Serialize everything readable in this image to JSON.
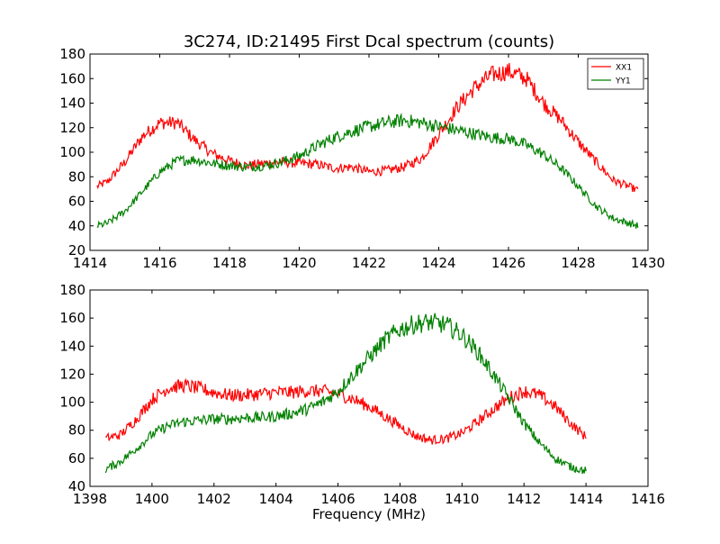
{
  "figure": {
    "title": "3C274, ID:21495 First Dcal spectrum (counts)",
    "xlabel": "Frequency (MHz)"
  },
  "colors": {
    "xx1": "#ff0000",
    "yy1": "#008000",
    "axes": "#000000",
    "background": "#ffffff"
  },
  "chart_data": [
    {
      "type": "line",
      "title": "3C274, ID:21495 First Dcal spectrum (counts)",
      "xlabel": "",
      "ylabel": "",
      "xlim": [
        1414,
        1430
      ],
      "ylim": [
        20,
        180
      ],
      "xticks": [
        1414,
        1416,
        1418,
        1420,
        1422,
        1424,
        1426,
        1428,
        1430
      ],
      "yticks": [
        20,
        40,
        60,
        80,
        100,
        120,
        140,
        160,
        180
      ],
      "legend": {
        "placement": "top-right",
        "entries": [
          "XX1",
          "YY1"
        ]
      },
      "noisy": true,
      "series": [
        {
          "name": "XX1",
          "color": "#ff0000",
          "x": [
            1414.2,
            1414.5,
            1415.0,
            1415.5,
            1416.0,
            1416.5,
            1417.0,
            1417.5,
            1418.0,
            1418.5,
            1419.0,
            1419.5,
            1420.0,
            1420.5,
            1421.0,
            1421.5,
            1422.0,
            1422.5,
            1423.0,
            1423.5,
            1424.0,
            1424.5,
            1425.0,
            1425.5,
            1426.0,
            1426.5,
            1427.0,
            1427.5,
            1428.0,
            1428.5,
            1429.0,
            1429.7
          ],
          "y": [
            72,
            76,
            92,
            113,
            124,
            124,
            110,
            99,
            93,
            89,
            91,
            92,
            91,
            90,
            87,
            88,
            84,
            85,
            88,
            95,
            115,
            136,
            152,
            163,
            166,
            160,
            140,
            126,
            108,
            92,
            77,
            69
          ]
        },
        {
          "name": "YY1",
          "color": "#008000",
          "x": [
            1414.2,
            1414.5,
            1415.0,
            1415.5,
            1416.0,
            1416.5,
            1417.0,
            1417.5,
            1418.0,
            1418.5,
            1419.0,
            1419.5,
            1420.0,
            1420.5,
            1421.0,
            1421.5,
            1422.0,
            1422.5,
            1423.0,
            1423.5,
            1424.0,
            1424.5,
            1425.0,
            1425.5,
            1426.0,
            1426.5,
            1427.0,
            1427.5,
            1428.0,
            1428.5,
            1429.0,
            1429.7
          ],
          "y": [
            40,
            42,
            52,
            68,
            84,
            93,
            94,
            91,
            89,
            88,
            89,
            92,
            97,
            105,
            112,
            117,
            121,
            124,
            126,
            124,
            121,
            118,
            115,
            112,
            111,
            106,
            98,
            87,
            72,
            56,
            46,
            40
          ]
        }
      ]
    },
    {
      "type": "line",
      "title": "",
      "xlabel": "Frequency (MHz)",
      "ylabel": "",
      "xlim": [
        1398,
        1416
      ],
      "ylim": [
        40,
        180
      ],
      "xticks": [
        1398,
        1400,
        1402,
        1404,
        1406,
        1408,
        1410,
        1412,
        1414,
        1416
      ],
      "yticks": [
        40,
        60,
        80,
        100,
        120,
        140,
        160,
        180
      ],
      "noisy": true,
      "series": [
        {
          "name": "XX1",
          "color": "#ff0000",
          "x": [
            1398.5,
            1399.0,
            1399.5,
            1400.0,
            1400.5,
            1401.0,
            1401.5,
            1402.0,
            1402.5,
            1403.0,
            1403.5,
            1404.0,
            1404.5,
            1405.0,
            1405.5,
            1406.0,
            1406.5,
            1407.0,
            1407.5,
            1408.0,
            1408.5,
            1409.0,
            1409.5,
            1410.0,
            1410.5,
            1411.0,
            1411.5,
            1412.0,
            1412.5,
            1413.0,
            1413.5,
            1414.0
          ],
          "y": [
            74,
            77,
            88,
            102,
            110,
            112,
            110,
            107,
            105,
            105,
            106,
            107,
            107,
            108,
            108,
            106,
            102,
            97,
            90,
            83,
            76,
            73,
            74,
            78,
            86,
            95,
            103,
            108,
            105,
            97,
            85,
            75
          ]
        },
        {
          "name": "YY1",
          "color": "#008000",
          "x": [
            1398.5,
            1399.0,
            1399.5,
            1400.0,
            1400.5,
            1401.0,
            1401.5,
            1402.0,
            1402.5,
            1403.0,
            1403.5,
            1404.0,
            1404.5,
            1405.0,
            1405.5,
            1406.0,
            1406.5,
            1407.0,
            1407.5,
            1408.0,
            1408.5,
            1409.0,
            1409.5,
            1410.0,
            1410.5,
            1411.0,
            1411.5,
            1412.0,
            1412.5,
            1413.0,
            1413.5,
            1414.0
          ],
          "y": [
            52,
            58,
            67,
            77,
            83,
            86,
            87,
            88,
            88,
            89,
            89,
            90,
            92,
            95,
            100,
            108,
            120,
            132,
            144,
            152,
            156,
            157,
            155,
            148,
            136,
            120,
            103,
            85,
            71,
            60,
            54,
            51
          ]
        }
      ]
    }
  ]
}
